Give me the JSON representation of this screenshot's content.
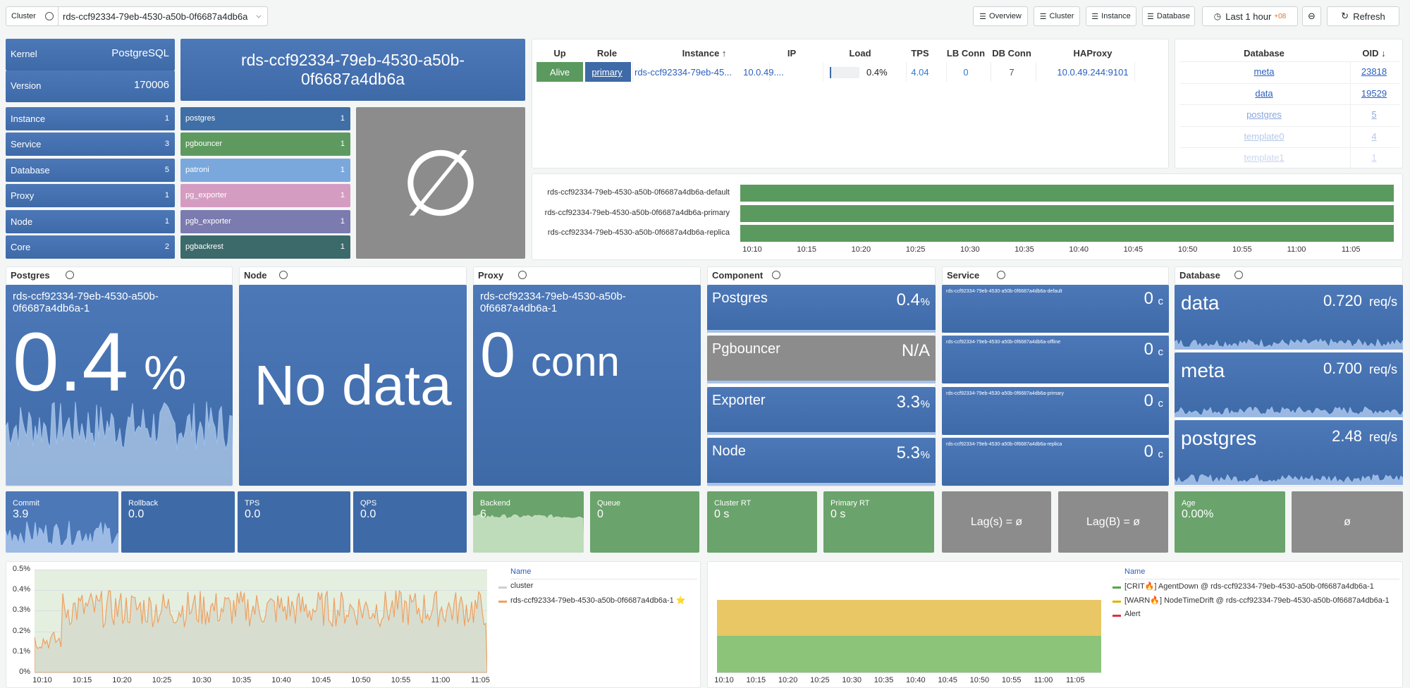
{
  "toolbar": {
    "cluster_label": "Cluster",
    "cluster_value": "rds-ccf92334-79eb-4530-a50b-0f6687a4db6a",
    "nav": [
      "Overview",
      "Cluster",
      "Instance",
      "Database"
    ],
    "time_range": "Last 1 hour",
    "timezone": "+08",
    "refresh": "Refresh"
  },
  "overview": {
    "kernel": {
      "label": "Kernel",
      "value": "PostgreSQL"
    },
    "version": {
      "label": "Version",
      "value": "170006"
    },
    "cluster_name": "rds-ccf92334-79eb-4530-a50b-0f6687a4db6a",
    "counts": [
      {
        "label": "Instance",
        "value": "1"
      },
      {
        "label": "Service",
        "value": "3"
      },
      {
        "label": "Database",
        "value": "5"
      },
      {
        "label": "Proxy",
        "value": "1"
      },
      {
        "label": "Node",
        "value": "1"
      },
      {
        "label": "Core",
        "value": "2"
      }
    ],
    "components": [
      {
        "label": "postgres",
        "value": "1"
      },
      {
        "label": "pgbouncer",
        "value": "1"
      },
      {
        "label": "patroni",
        "value": "1"
      },
      {
        "label": "pg_exporter",
        "value": "1"
      },
      {
        "label": "pgb_exporter",
        "value": "1"
      },
      {
        "label": "pgbackrest",
        "value": "1"
      }
    ],
    "empty": "∅"
  },
  "instances": {
    "headers": [
      "Up",
      "Role",
      "Instance ↑",
      "IP",
      "Load",
      "TPS",
      "LB Conn",
      "DB Conn",
      "HAProxy"
    ],
    "rows": [
      [
        "Alive",
        "primary",
        "rds-ccf92334-79eb-45...",
        "10.0.49....",
        "0.4%",
        "4.04",
        "0",
        "7",
        "10.0.49.244:9101"
      ]
    ]
  },
  "databases": {
    "headers": [
      "Database",
      "OID ↓"
    ],
    "rows": [
      [
        "meta",
        "23818"
      ],
      [
        "data",
        "19529"
      ],
      [
        "postgres",
        "5"
      ],
      [
        "template0",
        "4"
      ],
      [
        "template1",
        "1"
      ]
    ]
  },
  "timeline": {
    "labels": [
      "rds-ccf92334-79eb-4530-a50b-0f6687a4db6a-default",
      "rds-ccf92334-79eb-4530-a50b-0f6687a4db6a-primary",
      "rds-ccf92334-79eb-4530-a50b-0f6687a4db6a-replica"
    ],
    "ticks": [
      "10:10",
      "10:15",
      "10:20",
      "10:25",
      "10:30",
      "10:35",
      "10:40",
      "10:45",
      "10:50",
      "10:55",
      "11:00",
      "11:05"
    ]
  },
  "sections": [
    "Postgres",
    "Node",
    "Proxy",
    "Component",
    "Service",
    "Database"
  ],
  "postgres": {
    "name": "rds-ccf92334-79eb-4530-a50b-0f6687a4db6a-1",
    "value": "0.4",
    "unit": "%"
  },
  "node": {
    "value": "No data"
  },
  "proxy": {
    "name": "rds-ccf92334-79eb-4530-a50b-0f6687a4db6a-1",
    "value": "0",
    "unit": "conn"
  },
  "component": [
    {
      "name": "Postgres",
      "value": "0.4",
      "unit": "%"
    },
    {
      "name": "Pgbouncer",
      "value": "N/A"
    },
    {
      "name": "Exporter",
      "value": "3.3",
      "unit": "%"
    },
    {
      "name": "Node",
      "value": "5.3",
      "unit": "%"
    }
  ],
  "service": [
    {
      "name": "rds-ccf92334-79eb-4530-a50b-0f6687a4db6a-default",
      "value": "0",
      "unit": "c"
    },
    {
      "name": "rds-ccf92334-79eb-4530-a50b-0f6687a4db6a-offline",
      "value": "0",
      "unit": "c"
    },
    {
      "name": "rds-ccf92334-79eb-4530-a50b-0f6687a4db6a-primary",
      "value": "0",
      "unit": "c"
    },
    {
      "name": "rds-ccf92334-79eb-4530-a50b-0f6687a4db6a-replica",
      "value": "0",
      "unit": "c"
    }
  ],
  "database": [
    {
      "name": "data",
      "value": "0.720",
      "unit": "req/s"
    },
    {
      "name": "meta",
      "value": "0.700",
      "unit": "req/s"
    },
    {
      "name": "postgres",
      "value": "2.48",
      "unit": "req/s"
    }
  ],
  "stats": [
    {
      "label": "Commit",
      "value": "3.9"
    },
    {
      "label": "Rollback",
      "value": "0.0"
    },
    {
      "label": "TPS",
      "value": "0.0"
    },
    {
      "label": "QPS",
      "value": "0.0"
    },
    {
      "label": "Backend",
      "value": "6"
    },
    {
      "label": "Queue",
      "value": "0"
    },
    {
      "label": "Cluster RT",
      "value": "0 s"
    },
    {
      "label": "Primary RT",
      "value": "0 s"
    },
    {
      "value": "Lag(s) = ø"
    },
    {
      "value": "Lag(B) = ø"
    },
    {
      "label": "Age",
      "value": "0.00%"
    },
    {
      "value": "ø"
    }
  ],
  "bottom_left": {
    "yticks": [
      "0%",
      "0.1%",
      "0.2%",
      "0.3%",
      "0.4%",
      "0.5%"
    ],
    "xticks": [
      "10:10",
      "10:15",
      "10:20",
      "10:25",
      "10:30",
      "10:35",
      "10:40",
      "10:45",
      "10:50",
      "10:55",
      "11:00",
      "11:05"
    ],
    "legend_header": "Name",
    "legend": [
      "cluster",
      "rds-ccf92334-79eb-4530-a50b-0f6687a4db6a-1 ⭐"
    ]
  },
  "bottom_right": {
    "xticks": [
      "10:10",
      "10:15",
      "10:20",
      "10:25",
      "10:30",
      "10:35",
      "10:40",
      "10:45",
      "10:50",
      "10:55",
      "11:00",
      "11:05"
    ],
    "legend_header": "Name",
    "legend": [
      "[CRIT🔥] AgentDown @ rds-ccf92334-79eb-4530-a50b-0f6687a4db6a-1",
      "[WARN🔥] NodeTimeDrift @ rds-ccf92334-79eb-4530-a50b-0f6687a4db6a-1",
      "Alert"
    ]
  }
}
